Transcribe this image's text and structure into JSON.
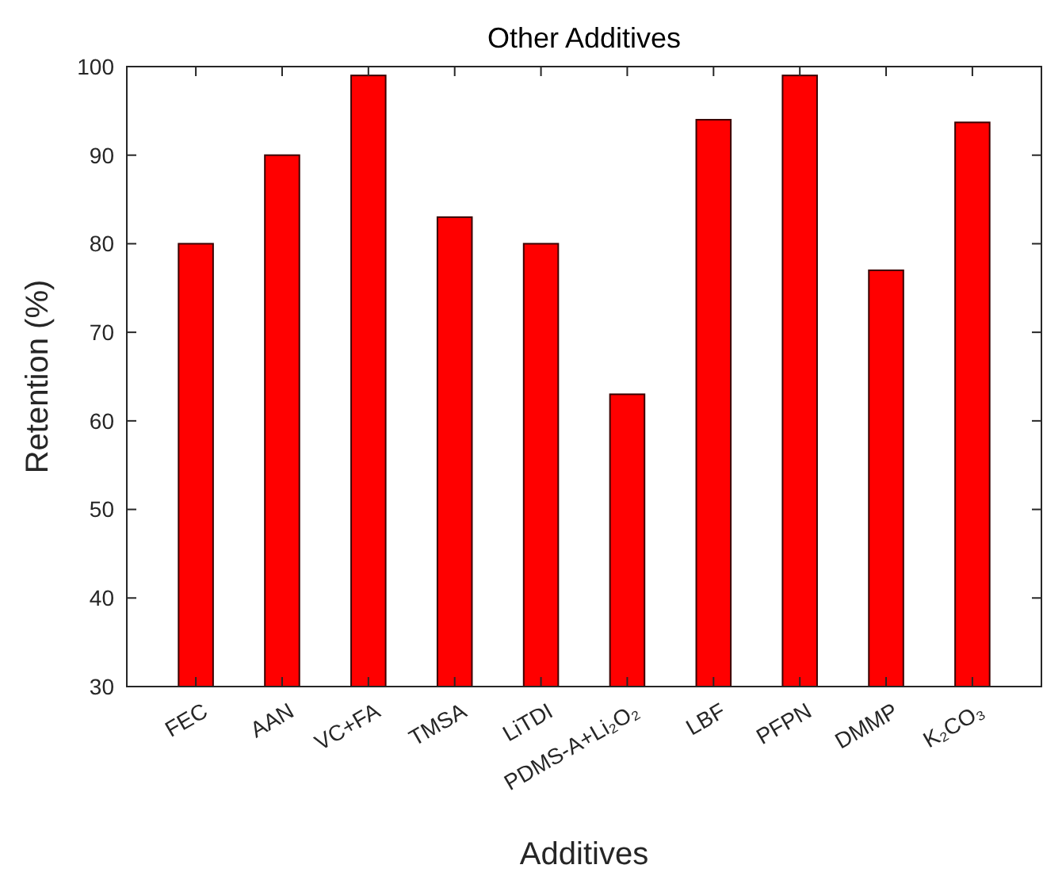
{
  "chart_data": {
    "type": "bar",
    "title": "Other Additives",
    "xlabel": "Additives",
    "ylabel": "Retention (%)",
    "categories": [
      "FEC",
      "AAN",
      "VC+FA",
      "TMSA",
      "LiTDI",
      "PDMS-A+Li₂O₂",
      "LBF",
      "PFPN",
      "DMMP",
      "K₂CO₃"
    ],
    "values": [
      80,
      90,
      99,
      83,
      80,
      63,
      94,
      99,
      77,
      93.7
    ],
    "color": "#ff0000",
    "ylim": [
      30,
      100
    ],
    "yticks": [
      30,
      40,
      50,
      60,
      70,
      80,
      90,
      100
    ],
    "grid": false
  }
}
